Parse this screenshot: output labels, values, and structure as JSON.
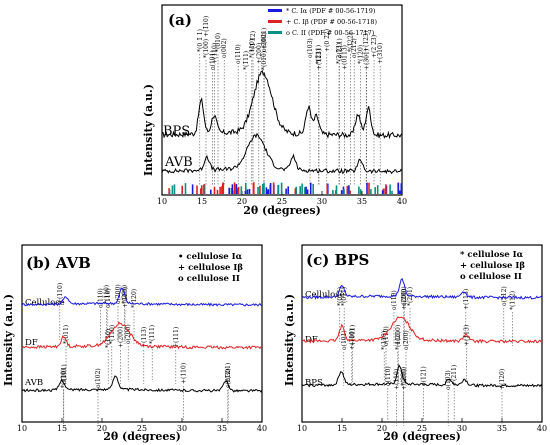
{
  "chart_data": [
    {
      "panel": "(a)",
      "type": "line",
      "xlabel": "2θ (degrees)",
      "ylabel": "Intensity (a.u.)",
      "xlim": [
        10,
        40
      ],
      "xticks": [
        "10",
        "15",
        "20",
        "25",
        "30",
        "35",
        "40"
      ],
      "legend_position": "top-right",
      "legend": [
        {
          "name": "* C. Iα (PDF # 00-56-1719)",
          "color": "#1a1adc"
        },
        {
          "name": "+ C. Iβ (PDF # 00-56-1718)",
          "color": "#dd2222"
        },
        {
          "name": "o C. II (PDF # 00-56-1717)",
          "color": "#0a8f86"
        }
      ],
      "series": [
        {
          "name": "BPS",
          "color": "#000000",
          "peaks": [
            [
              14.9,
              0.55
            ],
            [
              16.5,
              0.3
            ],
            [
              22.6,
              1.0
            ],
            [
              28.3,
              0.45
            ],
            [
              29.3,
              0.3
            ],
            [
              34.5,
              0.35
            ],
            [
              35.8,
              0.45
            ]
          ]
        },
        {
          "name": "AVB",
          "color": "#000000",
          "peaks": [
            [
              15.6,
              0.3
            ],
            [
              21.8,
              0.75
            ],
            [
              26.4,
              0.3
            ],
            [
              34.8,
              0.25
            ]
          ]
        }
      ],
      "peak_labels": [
        {
          "x": 15.0,
          "text": "*(0 1̄ 1)"
        },
        {
          "x": 15.5,
          "text": "*(100) +(1̄10)"
        },
        {
          "x": 16.3,
          "text": "+(110)"
        },
        {
          "x": 16.6,
          "text": "o(101)"
        },
        {
          "x": 17.0,
          "text": "*(010)"
        },
        {
          "x": 17.5,
          "text": "o(002)"
        },
        {
          "x": 19.8,
          "text": "o(110)"
        },
        {
          "x": 20.5,
          "text": "*(1̄11)"
        },
        {
          "x": 21.1,
          "text": "*(1̄ 1̄2)"
        },
        {
          "x": 21.5,
          "text": "*(110)"
        },
        {
          "x": 22.1,
          "text": "+(200)"
        },
        {
          "x": 22.5,
          "text": "*(010) +(021)"
        },
        {
          "x": 23.0,
          "text": "o(200)"
        },
        {
          "x": 28.5,
          "text": "o(103)"
        },
        {
          "x": 29.3,
          "text": "*(2̄11)"
        },
        {
          "x": 29.9,
          "text": "+(113)"
        },
        {
          "x": 30.6,
          "text": "+(0 2̄2)"
        },
        {
          "x": 31.9,
          "text": "o(211)"
        },
        {
          "x": 32.4,
          "text": "*(2 1̄3)"
        },
        {
          "x": 32.8,
          "text": "+(0113)"
        },
        {
          "x": 33.3,
          "text": "*(1̄22)"
        },
        {
          "x": 34.3,
          "text": "o(212)"
        },
        {
          "x": 34.8,
          "text": "*(120)"
        },
        {
          "x": 35.3,
          "text": "+(301)"
        },
        {
          "x": 35.8,
          "text": "+(123)"
        },
        {
          "x": 36.5,
          "text": "+(2 2̄3)"
        },
        {
          "x": 37.0,
          "text": "+(310)"
        }
      ]
    },
    {
      "panel": "(b) AVB",
      "type": "line",
      "xlabel": "2θ (degrees)",
      "ylabel": "Intensity (a.u.)",
      "xlim": [
        10,
        40
      ],
      "xticks": [
        "10",
        "15",
        "20",
        "25",
        "30",
        "35",
        "40"
      ],
      "legend_position": "top-right",
      "legend": [
        "• cellulose Iα",
        "+ cellulose Iβ",
        "o cellulose II"
      ],
      "series": [
        {
          "name": "Cellulose",
          "color": "#1a1adc",
          "peaks": [
            [
              15.5,
              0.25
            ],
            [
              22.5,
              0.55
            ]
          ]
        },
        {
          "name": "DF",
          "color": "#dd2222",
          "peaks": [
            [
              15.2,
              0.3
            ],
            [
              22.3,
              0.7
            ]
          ]
        },
        {
          "name": "AVB",
          "color": "#000000",
          "peaks": [
            [
              15.0,
              0.35
            ],
            [
              21.7,
              0.5
            ],
            [
              35.5,
              0.35
            ]
          ]
        }
      ],
      "peak_labels": [
        {
          "x": 15.0,
          "text": "+(110)"
        },
        {
          "x": 19.8,
          "text": "o(110)"
        },
        {
          "x": 20.3,
          "text": "*(110)"
        },
        {
          "x": 21.0,
          "text": "o(110)"
        },
        {
          "x": 22.0,
          "text": "o(200)"
        },
        {
          "x": 22.6,
          "text": "+(110)"
        },
        {
          "x": 23.1,
          "text": "*(201)"
        },
        {
          "x": 24.0,
          "text": "*(120)"
        },
        {
          "x": 26.0,
          "text": "*(111)"
        },
        {
          "x": 29.5,
          "text": "+(111)"
        },
        {
          "x": 15.5,
          "text": "*(011)"
        },
        {
          "x": 20.5,
          "text": "*(110)"
        },
        {
          "x": 21.5,
          "text": "*(110)"
        },
        {
          "x": 22.3,
          "text": "+(200)"
        },
        {
          "x": 23.0,
          "text": "o(200)"
        },
        {
          "x": 25.5,
          "text": "+(113)"
        },
        {
          "x": 30.2,
          "text": "+(110)"
        },
        {
          "x": 14.9,
          "text": "*(110)"
        },
        {
          "x": 15.5,
          "text": "o(101)"
        },
        {
          "x": 19.5,
          "text": "o(102)"
        },
        {
          "x": 35.5,
          "text": "+(301)"
        },
        {
          "x": 36.0,
          "text": "o(212)"
        }
      ]
    },
    {
      "panel": "(c) BPS",
      "type": "line",
      "xlabel": "2θ (degrees)",
      "ylabel": "Intensity (a.u.)",
      "xlim": [
        10,
        40
      ],
      "xticks": [
        "10",
        "15",
        "20",
        "25",
        "30",
        "35",
        "40"
      ],
      "legend_position": "top-right",
      "legend": [
        "* cellulose Iα",
        "+ cellulose Iβ",
        "o cellulose II"
      ],
      "series": [
        {
          "name": "Cellulose",
          "color": "#1a1adc",
          "peaks": [
            [
              15.0,
              0.35
            ],
            [
              22.5,
              0.55
            ],
            [
              30.2,
              0.2
            ]
          ]
        },
        {
          "name": "DF",
          "color": "#dd2222",
          "peaks": [
            [
              15.0,
              0.45
            ],
            [
              22.3,
              0.7
            ],
            [
              30.5,
              0.2
            ]
          ]
        },
        {
          "name": "BPS",
          "color": "#000000",
          "peaks": [
            [
              14.9,
              0.45
            ],
            [
              22.2,
              0.6
            ],
            [
              28.4,
              0.2
            ],
            [
              30.3,
              0.2
            ]
          ]
        }
      ],
      "peak_labels": [
        {
          "x": 15.0,
          "text": "*(011)"
        },
        {
          "x": 21.5,
          "text": "o(110)"
        },
        {
          "x": 22.5,
          "text": "o(200)"
        },
        {
          "x": 23.0,
          "text": "+(200)"
        },
        {
          "x": 23.5,
          "text": "*(201)"
        },
        {
          "x": 30.2,
          "text": "+(113)"
        },
        {
          "x": 35.5,
          "text": "o(212)"
        },
        {
          "x": 36.3,
          "text": "*(112)"
        },
        {
          "x": 15.0,
          "text": "*(011)"
        },
        {
          "x": 16.5,
          "text": "+(110)"
        },
        {
          "x": 20.5,
          "text": "o(110)"
        },
        {
          "x": 21.7,
          "text": "*(110)"
        },
        {
          "x": 22.3,
          "text": "+(200)"
        },
        {
          "x": 23.0,
          "text": "o(200)"
        },
        {
          "x": 30.3,
          "text": "+(113)"
        },
        {
          "x": 15.5,
          "text": "o(101)"
        },
        {
          "x": 16.3,
          "text": "+(011)"
        },
        {
          "x": 20.0,
          "text": "*(110)"
        },
        {
          "x": 21.0,
          "text": "o(110)"
        },
        {
          "x": 21.8,
          "text": "+(110)"
        },
        {
          "x": 22.4,
          "text": "*(200)"
        },
        {
          "x": 23.0,
          "text": "+(200)"
        },
        {
          "x": 25.2,
          "text": "o(121)"
        },
        {
          "x": 28.0,
          "text": "o(103)"
        },
        {
          "x": 29.3,
          "text": "+(211)"
        },
        {
          "x": 35.0,
          "text": "+(120)"
        }
      ]
    }
  ]
}
